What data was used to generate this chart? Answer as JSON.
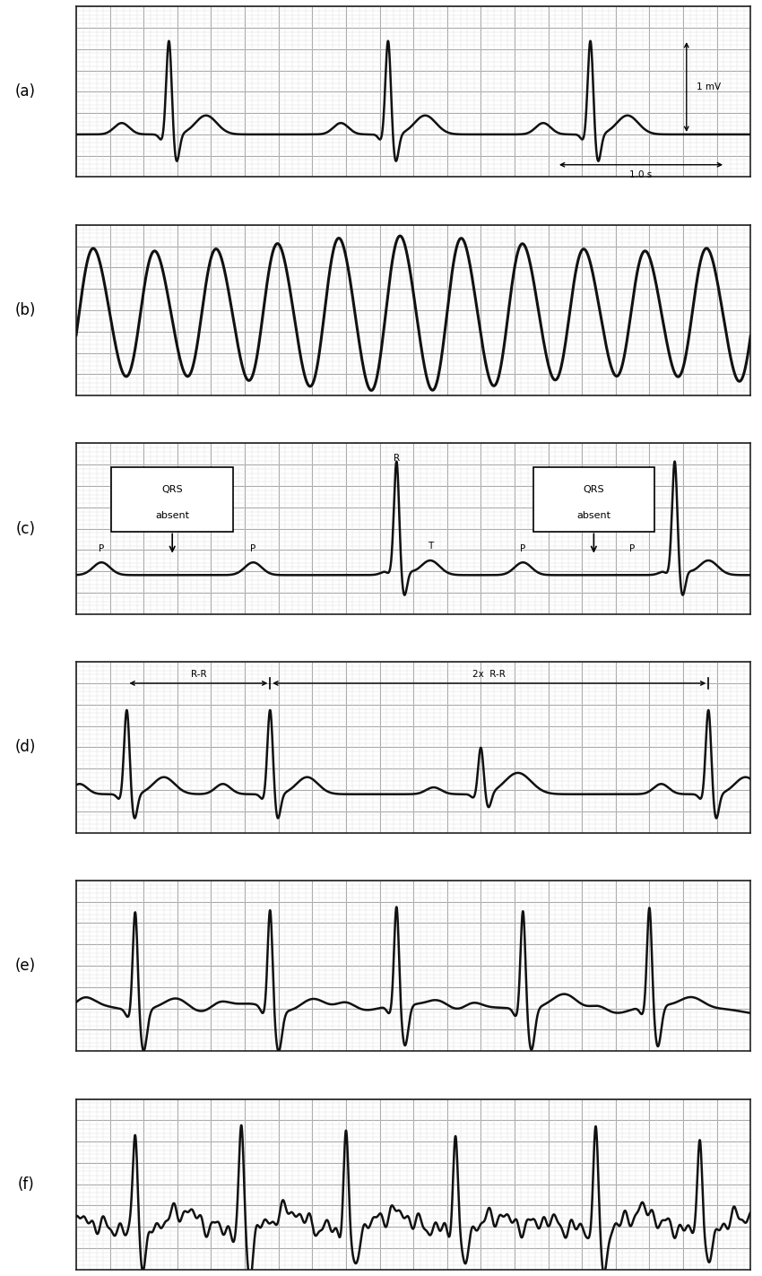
{
  "figure_bg": "#ffffff",
  "grid_major_color": "#aaaaaa",
  "grid_minor_color": "#cccccc",
  "line_color": "#111111",
  "panels": [
    "(a)",
    "(b)",
    "(c)",
    "(d)",
    "(e)",
    "(f)"
  ]
}
